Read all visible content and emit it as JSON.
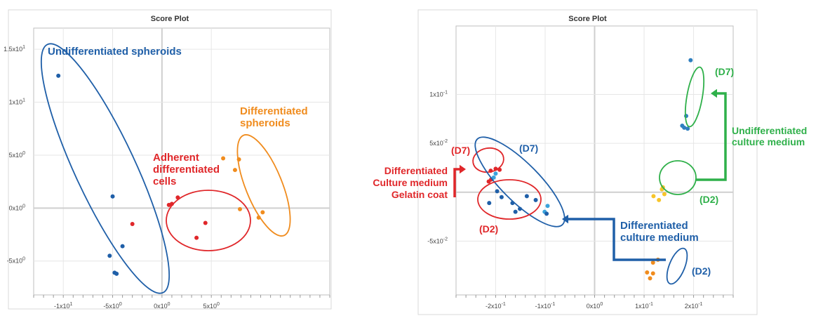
{
  "chart_data": [
    {
      "type": "scatter",
      "title": "Score Plot",
      "xlabel": "",
      "ylabel": "",
      "xlim": [
        -13,
        17
      ],
      "ylim": [
        -8.2,
        17
      ],
      "xticks": [
        {
          "v": -10,
          "b": "-1x10",
          "e": "1"
        },
        {
          "v": -5,
          "b": "-5x10",
          "e": "0"
        },
        {
          "v": 0,
          "b": "0x10",
          "e": "0"
        },
        {
          "v": 5,
          "b": "5x10",
          "e": "0"
        }
      ],
      "yticks": [
        {
          "v": 15,
          "b": "1.5x10",
          "e": "1"
        },
        {
          "v": 10,
          "b": "1x10",
          "e": "1"
        },
        {
          "v": 5,
          "b": "5x10",
          "e": "0"
        },
        {
          "v": 0,
          "b": "0x10",
          "e": "0"
        },
        {
          "v": -5,
          "b": "-5x10",
          "e": "0"
        }
      ],
      "series": [
        {
          "color": "#1f5fa8",
          "points": [
            [
              -10.5,
              12.5
            ],
            [
              -5.0,
              1.1
            ],
            [
              -5.3,
              -4.5
            ],
            [
              -4.0,
              -3.6
            ],
            [
              -4.8,
              -6.1
            ],
            [
              -4.6,
              -6.2
            ]
          ]
        },
        {
          "color": "#e0272a",
          "points": [
            [
              -3.0,
              -1.5
            ],
            [
              0.7,
              0.3
            ],
            [
              1.0,
              0.4
            ],
            [
              1.6,
              1.0
            ],
            [
              4.4,
              -1.4
            ],
            [
              3.5,
              -2.8
            ]
          ]
        },
        {
          "color": "#f08c1e",
          "points": [
            [
              6.2,
              4.7
            ],
            [
              7.8,
              4.6
            ],
            [
              7.4,
              3.6
            ],
            [
              7.9,
              -0.1
            ],
            [
              9.8,
              -0.9
            ],
            [
              10.2,
              -0.4
            ]
          ]
        }
      ],
      "annotations": [
        {
          "lines": [
            "Undifferentiated spheroids"
          ],
          "color": "#1f5fa8"
        },
        {
          "lines": [
            "Adherent",
            "differentiated",
            "cells"
          ],
          "color": "#e0272a"
        },
        {
          "lines": [
            "Differentiated",
            "spheroids"
          ],
          "color": "#f08c1e"
        }
      ]
    },
    {
      "type": "scatter",
      "title": "Score Plot",
      "xlabel": "",
      "ylabel": "",
      "xlim": [
        -0.28,
        0.28
      ],
      "ylim": [
        -0.105,
        0.17
      ],
      "xticks": [
        {
          "v": -0.2,
          "b": "-2x10",
          "e": "-1"
        },
        {
          "v": -0.1,
          "b": "-1x10",
          "e": "-1"
        },
        {
          "v": 0,
          "b": "0x10",
          "e": "0"
        },
        {
          "v": 0.1,
          "b": "1x10",
          "e": "-1"
        },
        {
          "v": 0.2,
          "b": "2x10",
          "e": "-1"
        }
      ],
      "yticks": [
        {
          "v": 0.1,
          "b": "1x10",
          "e": "-1"
        },
        {
          "v": 0.05,
          "b": "5x10",
          "e": "-2"
        },
        {
          "v": -0.05,
          "b": "-5x10",
          "e": "-2"
        }
      ],
      "series": [
        {
          "color": "#e0272a",
          "points": [
            [
              -0.21,
              0.022
            ],
            [
              -0.2,
              0.024
            ],
            [
              -0.192,
              0.023
            ],
            [
              -0.209,
              0.013
            ],
            [
              -0.214,
              0.011
            ]
          ]
        },
        {
          "color": "#3aa3dc",
          "points": [
            [
              -0.2,
              0.019
            ],
            [
              -0.204,
              0.015
            ],
            [
              -0.095,
              -0.014
            ],
            [
              -0.101,
              -0.02
            ]
          ]
        },
        {
          "color": "#1f5fa8",
          "points": [
            [
              -0.197,
              0.001
            ],
            [
              -0.188,
              -0.005
            ],
            [
              -0.166,
              -0.011
            ],
            [
              -0.151,
              -0.017
            ],
            [
              -0.137,
              -0.004
            ],
            [
              -0.119,
              -0.008
            ],
            [
              -0.213,
              -0.011
            ],
            [
              -0.16,
              -0.02
            ],
            [
              -0.097,
              -0.022
            ]
          ]
        },
        {
          "color": "#f7c52a",
          "points": [
            [
              0.138,
              0.005
            ],
            [
              0.136,
              0.003
            ],
            [
              0.141,
              -0.002
            ],
            [
              0.13,
              -0.008
            ],
            [
              0.119,
              -0.004
            ]
          ]
        },
        {
          "color": "#2f7fbf",
          "points": [
            [
              0.194,
              0.135
            ],
            [
              0.185,
              0.078
            ],
            [
              0.177,
              0.068
            ],
            [
              0.181,
              0.066
            ],
            [
              0.188,
              0.065
            ]
          ]
        },
        {
          "color": "#f08c1e",
          "points": [
            [
              0.106,
              -0.082
            ],
            [
              0.118,
              -0.072
            ],
            [
              0.128,
              -0.069
            ],
            [
              0.118,
              -0.083
            ],
            [
              0.112,
              -0.088
            ]
          ]
        }
      ],
      "annotations": [
        {
          "lines": [
            "(D7)"
          ],
          "color": "#e0272a"
        },
        {
          "lines": [
            "(D7)"
          ],
          "color": "#1f5fa8"
        },
        {
          "lines": [
            "Differentiated",
            "Culture medium",
            "Gelatin coat"
          ],
          "color": "#e0272a"
        },
        {
          "lines": [
            "(D2)"
          ],
          "color": "#e0272a"
        },
        {
          "lines": [
            "Differentiated",
            "culture medium"
          ],
          "color": "#1f5fa8"
        },
        {
          "lines": [
            "(D2)"
          ],
          "color": "#1f5fa8"
        },
        {
          "lines": [
            "(D7)"
          ],
          "color": "#2fb04a"
        },
        {
          "lines": [
            "Undifferentiated",
            "culture medium"
          ],
          "color": "#2fb04a"
        },
        {
          "lines": [
            "(D2)"
          ],
          "color": "#2fb04a"
        }
      ]
    }
  ]
}
